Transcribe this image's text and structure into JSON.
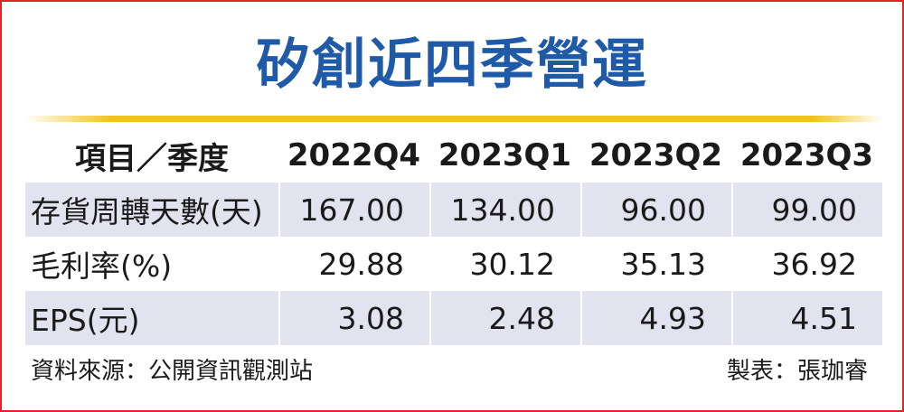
{
  "title": "矽創近四季營運",
  "table": {
    "header": [
      "項目／季度",
      "2022Q4",
      "2023Q1",
      "2023Q2",
      "2023Q3"
    ],
    "rows": [
      {
        "label": "存貨周轉天數(天)",
        "values": [
          "167.00",
          "134.00",
          "96.00",
          "99.00"
        ]
      },
      {
        "label": "毛利率(%)",
        "values": [
          "29.88",
          "30.12",
          "35.13",
          "36.92"
        ]
      },
      {
        "label": "EPS(元)",
        "values": [
          "3.08",
          "2.48",
          "4.93",
          "4.51"
        ]
      }
    ]
  },
  "footer": {
    "source": "資料來源：公開資訊觀測站",
    "maker": "製表：張珈睿"
  },
  "colors": {
    "border": "#e2232a",
    "title": "#1e5aa8",
    "accent_rule": "#f2c416",
    "row_shade": "#e2e3ee"
  }
}
